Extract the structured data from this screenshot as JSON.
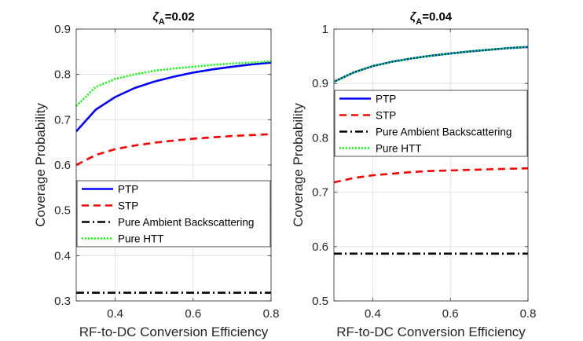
{
  "chart_data": [
    {
      "type": "line",
      "title": "ζA=0.02",
      "title_parts": {
        "symbol": "ζ",
        "subscript": "A",
        "rest": "=0.02"
      },
      "xlabel": "RF-to-DC Conversion Efficiency",
      "ylabel": "Coverage Probability",
      "xlim": [
        0.3,
        0.8
      ],
      "ylim": [
        0.3,
        0.9
      ],
      "xticks": [
        "0.4",
        "0.6",
        "0.8"
      ],
      "yticks": [
        "0.3",
        "0.4",
        "0.5",
        "0.6",
        "0.7",
        "0.8",
        "0.9"
      ],
      "grid": true,
      "legend_position": "lower-left",
      "x": [
        0.3,
        0.35,
        0.4,
        0.45,
        0.5,
        0.55,
        0.6,
        0.65,
        0.7,
        0.75,
        0.8
      ],
      "series": [
        {
          "name": "PTP",
          "color": "#0000ff",
          "style": "solid",
          "values": [
            0.674,
            0.722,
            0.75,
            0.77,
            0.784,
            0.795,
            0.804,
            0.811,
            0.817,
            0.822,
            0.826
          ]
        },
        {
          "name": "STP",
          "color": "#ff0000",
          "style": "dashed",
          "values": [
            0.6,
            0.622,
            0.635,
            0.643,
            0.649,
            0.654,
            0.658,
            0.661,
            0.664,
            0.666,
            0.668
          ]
        },
        {
          "name": "Pure Ambient Backscattering",
          "color": "#000000",
          "style": "dashdot",
          "values": [
            0.318,
            0.318,
            0.318,
            0.318,
            0.318,
            0.318,
            0.318,
            0.318,
            0.318,
            0.318,
            0.318
          ]
        },
        {
          "name": "Pure HTT",
          "color": "#00ff00",
          "style": "dotted",
          "values": [
            0.73,
            0.772,
            0.79,
            0.8,
            0.808,
            0.813,
            0.817,
            0.821,
            0.824,
            0.826,
            0.829
          ]
        }
      ]
    },
    {
      "type": "line",
      "title": "ζA=0.04",
      "title_parts": {
        "symbol": "ζ",
        "subscript": "A",
        "rest": "=0.04"
      },
      "xlabel": "RF-to-DC Conversion Efficiency",
      "ylabel": "Coverage Probability",
      "xlim": [
        0.3,
        0.8
      ],
      "ylim": [
        0.5,
        1.0
      ],
      "xticks": [
        "0.4",
        "0.6",
        "0.8"
      ],
      "yticks": [
        "0.5",
        "0.6",
        "0.7",
        "0.8",
        "0.9",
        "1"
      ],
      "grid": true,
      "legend_position": "upper-left",
      "x": [
        0.3,
        0.35,
        0.4,
        0.45,
        0.5,
        0.55,
        0.6,
        0.65,
        0.7,
        0.75,
        0.8
      ],
      "series": [
        {
          "name": "PTP",
          "color": "#0000ff",
          "style": "solid",
          "values": [
            0.903,
            0.92,
            0.932,
            0.94,
            0.946,
            0.951,
            0.955,
            0.959,
            0.962,
            0.965,
            0.967
          ]
        },
        {
          "name": "STP",
          "color": "#ff0000",
          "style": "dashed",
          "values": [
            0.718,
            0.726,
            0.731,
            0.734,
            0.737,
            0.739,
            0.74,
            0.741,
            0.742,
            0.743,
            0.744
          ]
        },
        {
          "name": "Pure Ambient Backscattering",
          "color": "#000000",
          "style": "dashdot",
          "values": [
            0.587,
            0.587,
            0.587,
            0.587,
            0.587,
            0.587,
            0.587,
            0.587,
            0.587,
            0.587,
            0.587
          ]
        },
        {
          "name": "Pure HTT",
          "color": "#00ff00",
          "style": "dotted",
          "values": [
            0.903,
            0.92,
            0.932,
            0.94,
            0.946,
            0.951,
            0.955,
            0.959,
            0.962,
            0.965,
            0.967
          ]
        }
      ]
    }
  ]
}
